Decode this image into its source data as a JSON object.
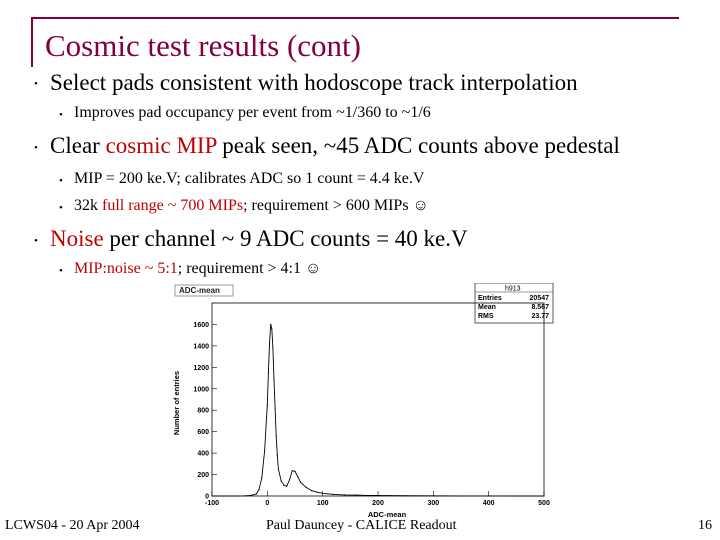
{
  "title": "Cosmic test results (cont)",
  "bullets": [
    {
      "text_a": "Select pads consistent with hodoscope track interpolation"
    },
    {
      "text_a": "Improves pad occupancy per event from ~1/360 to ~1/6"
    },
    {
      "text_a": "Clear ",
      "hl": "cosmic MIP",
      "text_b": " peak seen, ~45 ADC counts above pedestal"
    },
    {
      "text_a": "MIP = 200 ke.V; calibrates ADC so 1 count = 4.4 ke.V"
    },
    {
      "text_a": "32k ",
      "hl": "full range ~ 700 MIPs",
      "text_b": "; requirement > 600 MIPs ☺"
    },
    {
      "hl": "Noise",
      "text_b": " per channel ~ 9 ADC counts = 40 ke.V"
    },
    {
      "hl": "MIP:noise ~ 5:1",
      "text_b": "; requirement > 4:1 ☺"
    }
  ],
  "footer": {
    "left": "LCWS04 - 20 Apr 2004",
    "center": "Paul Dauncey - CALICE Readout",
    "page": "16"
  },
  "chart_data": {
    "type": "line",
    "title": "ADC-mean",
    "xlabel": "ADC-mean",
    "ylabel": "Number of entries",
    "xlim": [
      -100,
      500
    ],
    "ylim": [
      0,
      1800
    ],
    "xticks": [
      "-100",
      "0",
      "100",
      "200",
      "300",
      "400",
      "500"
    ],
    "yticks": [
      "0",
      "200",
      "400",
      "600",
      "800",
      "1000",
      "1200",
      "1400",
      "1600"
    ],
    "stats": {
      "name": "h913",
      "rows": [
        {
          "label": "Entries",
          "value": "20547"
        },
        {
          "label": "Mean",
          "value": "8.567"
        },
        {
          "label": "RMS",
          "value": "23.77"
        }
      ]
    },
    "series": [
      {
        "x": [
          -100,
          -80,
          -60,
          -40,
          -30,
          -20,
          -15,
          -10,
          -5,
          0,
          2,
          4,
          6,
          8,
          10,
          12,
          14,
          16,
          18,
          20,
          25,
          30,
          35,
          40,
          45,
          50,
          55,
          60,
          70,
          80,
          90,
          100,
          120,
          140,
          160,
          180,
          200,
          220,
          250,
          300,
          350,
          400,
          450,
          500
        ],
        "y": [
          0,
          0,
          0,
          2,
          5,
          20,
          60,
          170,
          420,
          850,
          1150,
          1420,
          1600,
          1560,
          1380,
          1080,
          820,
          560,
          380,
          250,
          140,
          100,
          90,
          150,
          235,
          230,
          180,
          130,
          80,
          50,
          35,
          25,
          15,
          10,
          8,
          6,
          5,
          4,
          3,
          2,
          1,
          1,
          0,
          0
        ]
      }
    ]
  }
}
